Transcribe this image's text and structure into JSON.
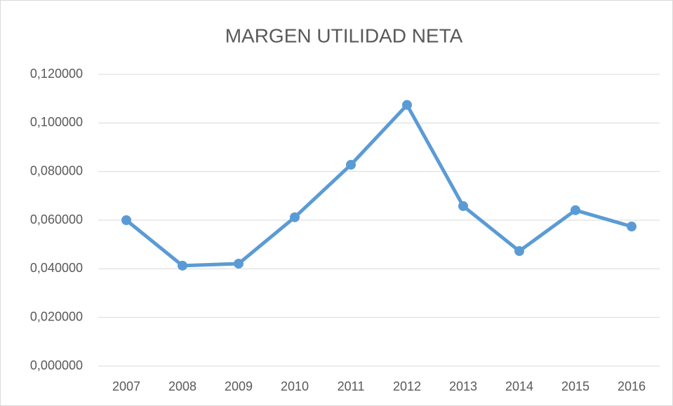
{
  "chart_data": {
    "type": "line",
    "title": "MARGEN UTILIDAD NETA",
    "categories": [
      "2007",
      "2008",
      "2009",
      "2010",
      "2011",
      "2012",
      "2013",
      "2014",
      "2015",
      "2016"
    ],
    "series": [
      {
        "name": "MARGEN UTILIDAD NETA",
        "color": "#5b9bd5",
        "values": [
          0.06,
          0.0413,
          0.0421,
          0.0612,
          0.0828,
          0.1074,
          0.0658,
          0.0473,
          0.0641,
          0.0574
        ]
      }
    ],
    "ylim": [
      0,
      0.12
    ],
    "yticks": [
      {
        "value": 0,
        "label": "0,000000"
      },
      {
        "value": 0.02,
        "label": "0,020000"
      },
      {
        "value": 0.04,
        "label": "0,040000"
      },
      {
        "value": 0.06,
        "label": "0,060000"
      },
      {
        "value": 0.08,
        "label": "0,080000"
      },
      {
        "value": 0.1,
        "label": "0,100000"
      },
      {
        "value": 0.12,
        "label": "0,120000"
      }
    ],
    "grid": true
  }
}
